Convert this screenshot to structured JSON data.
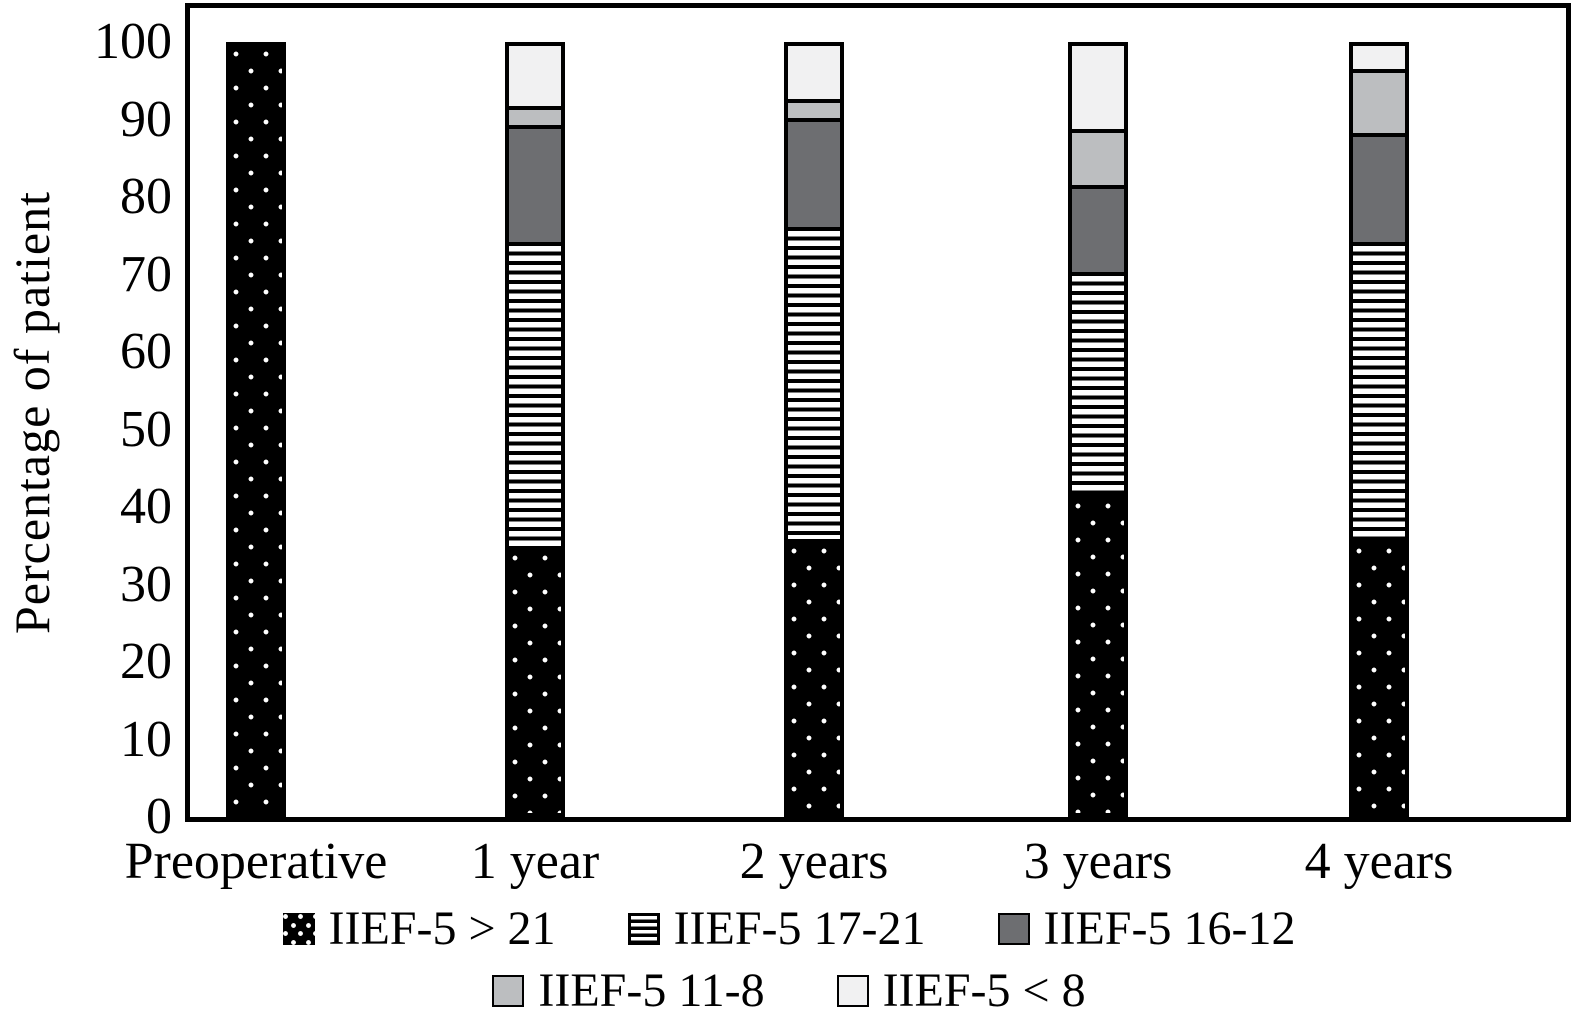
{
  "chart_data": {
    "type": "bar",
    "stacked": true,
    "title": "",
    "xlabel": "",
    "ylabel": "Percentage of patient",
    "ylim": [
      0,
      100
    ],
    "yticks": [
      0,
      10,
      20,
      30,
      40,
      50,
      60,
      70,
      80,
      90,
      100
    ],
    "grid": false,
    "legend_position": "bottom",
    "categories": [
      "Preoperative",
      "1 year",
      "2 years",
      "3 years",
      "4 years"
    ],
    "series": [
      {
        "name": "IIEF-5 > 21",
        "pattern": "dots-on-black",
        "color": "#000000",
        "values": [
          100,
          35,
          36,
          42,
          36
        ]
      },
      {
        "name": "IIEF-5 17-21",
        "pattern": "horizontal-lines",
        "color": "#000000",
        "values": [
          0,
          40,
          41,
          29,
          39
        ]
      },
      {
        "name": "IIEF-5 16-12",
        "pattern": "solid",
        "color": "#6d6e71",
        "values": [
          0,
          15,
          14,
          11,
          14
        ]
      },
      {
        "name": "IIEF-5 11-8",
        "pattern": "solid",
        "color": "#bcbec0",
        "values": [
          0,
          2,
          2,
          7,
          8
        ]
      },
      {
        "name": "IIEF-5 < 8",
        "pattern": "solid",
        "color": "#f1f1f2",
        "values": [
          0,
          8,
          7,
          11,
          3
        ]
      }
    ]
  }
}
